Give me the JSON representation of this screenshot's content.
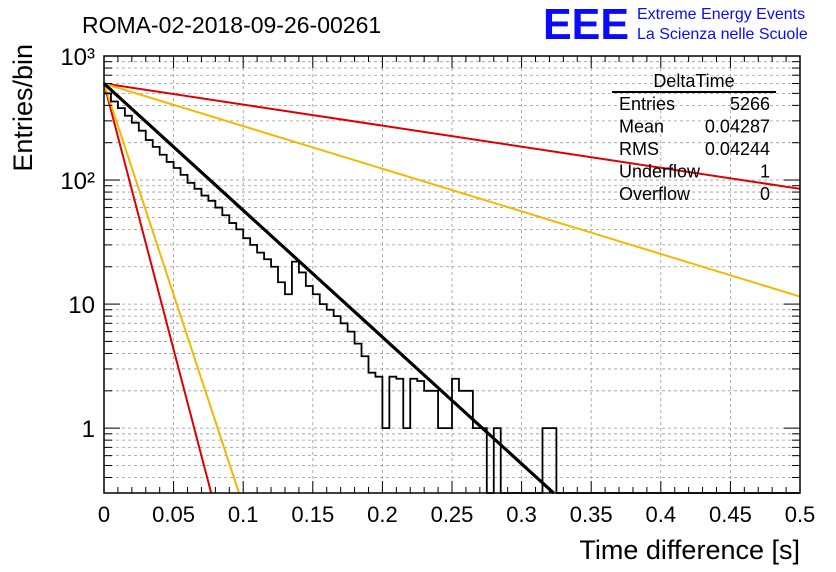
{
  "header": {
    "run_title": "ROMA-02-2018-09-26-00261",
    "logo_text": "EEE",
    "brand_line1": "Extreme Energy Events",
    "brand_line2": "La Scienza nelle Scuole"
  },
  "stats": {
    "title": "DeltaTime",
    "rows": [
      {
        "label": "Entries",
        "value": "5266"
      },
      {
        "label": "Mean",
        "value": "0.04287"
      },
      {
        "label": "RMS",
        "value": "0.04244"
      },
      {
        "label": "Underflow",
        "value": "1"
      },
      {
        "label": "Overflow",
        "value": "0"
      }
    ]
  },
  "colors": {
    "histogram": "#000000",
    "fit": "#000000",
    "red_bound": "#dd0000",
    "orange_bound": "#f5b800",
    "grid": "#9a9a9a",
    "logo": "#0a0aff"
  },
  "chart_data": {
    "type": "histogram-log",
    "xlabel": "Time difference [s]",
    "ylabel": "Entries/bin",
    "xlim": [
      0,
      0.5
    ],
    "ylim": [
      0.3,
      1000
    ],
    "log_y": true,
    "grid": true,
    "bin_width": 0.005,
    "x_ticks": [
      "0",
      "0.05",
      "0.1",
      "0.15",
      "0.2",
      "0.25",
      "0.3",
      "0.35",
      "0.4",
      "0.45",
      "0.5"
    ],
    "y_ticks": [
      "10³",
      "10²",
      "10",
      "1"
    ],
    "histogram": {
      "x_start": 0,
      "counts": [
        500,
        430,
        380,
        330,
        290,
        250,
        210,
        185,
        160,
        140,
        125,
        110,
        95,
        85,
        75,
        68,
        60,
        52,
        45,
        40,
        34,
        30,
        26,
        23,
        20,
        15,
        12,
        22,
        18,
        14,
        12,
        10,
        9,
        8,
        7,
        6,
        4.8,
        3.8,
        2.8,
        2.6,
        1,
        2.6,
        2.5,
        1,
        2.5,
        2.4,
        2,
        2,
        1,
        1,
        2.5,
        2,
        2,
        1,
        1,
        0.3,
        1,
        0.3,
        0,
        0,
        0,
        0,
        0,
        1,
        1,
        0,
        0,
        0,
        0,
        0,
        0,
        0,
        0,
        0,
        0,
        0,
        0,
        0,
        0,
        0,
        0,
        0,
        0,
        0,
        0,
        0,
        0,
        0,
        0,
        0,
        0,
        0,
        0,
        0,
        0,
        0,
        0,
        0,
        0,
        0
      ]
    },
    "curves": [
      {
        "role": "fit",
        "color": "#000000",
        "points": [
          [
            0,
            600
          ],
          [
            0.323,
            0.3
          ]
        ]
      },
      {
        "role": "bound-steep",
        "color": "#dd0000",
        "points": [
          [
            0,
            600
          ],
          [
            0.077,
            0.3
          ]
        ]
      },
      {
        "role": "bound-steep",
        "color": "#f5b800",
        "points": [
          [
            0,
            600
          ],
          [
            0.097,
            0.3
          ]
        ]
      },
      {
        "role": "bound-shallow",
        "color": "#dd0000",
        "points": [
          [
            0,
            600
          ],
          [
            0.5,
            85
          ]
        ]
      },
      {
        "role": "bound-shallow",
        "color": "#f5b800",
        "points": [
          [
            0,
            600
          ],
          [
            0.5,
            11.5
          ]
        ]
      }
    ]
  }
}
